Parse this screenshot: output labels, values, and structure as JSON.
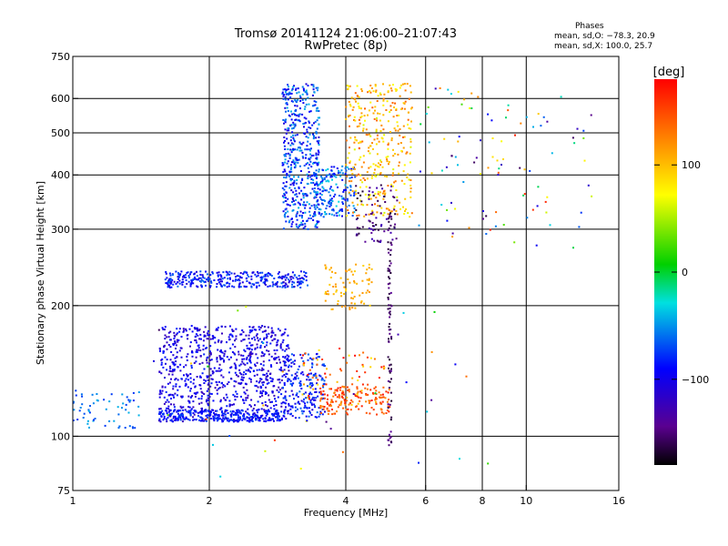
{
  "header": {
    "title_line1": "Tromsø 20141124 21:06:00–21:07:43",
    "title_line2": "RwPretec (8p)"
  },
  "stats": {
    "label": "Phases",
    "line_o": "mean, sd,O: −78.3, 20.9",
    "line_x": "mean, sd,X: 100.0, 25.7"
  },
  "chart_data": {
    "type": "scatter",
    "xlabel": "Frequency [MHz]",
    "ylabel": "Stationary phase Virtual Height [km]",
    "xscale": "log",
    "yscale": "log",
    "xlim": [
      1,
      16
    ],
    "ylim": [
      75,
      750
    ],
    "x_ticks": [
      1,
      2,
      4,
      6,
      8,
      10,
      16
    ],
    "y_ticks": [
      75,
      100,
      200,
      300,
      400,
      500,
      600,
      750
    ],
    "grid_x": [
      2,
      4,
      6,
      8,
      10
    ],
    "grid_y": [
      100,
      200,
      300,
      400,
      500,
      600
    ],
    "grid": true,
    "colorbar": {
      "label": "[deg]",
      "range": [
        -180,
        180
      ],
      "ticks": [
        -100,
        0,
        100
      ],
      "tick_labels": [
        "−100",
        "0",
        "100"
      ]
    },
    "clusters": [
      {
        "name": "O-trace low band",
        "freq": [
          1.55,
          3.0
        ],
        "height": [
          108,
          180
        ],
        "phase": [
          -125,
          -80
        ],
        "n": 900
      },
      {
        "name": "O-trace low band dense edge",
        "freq": [
          1.55,
          2.9
        ],
        "height": [
          108,
          115
        ],
        "phase": [
          -100,
          -70
        ],
        "n": 250
      },
      {
        "name": "O-trace low band extension",
        "freq": [
          2.9,
          3.6
        ],
        "height": [
          110,
          155
        ],
        "phase": [
          -110,
          -60
        ],
        "n": 200
      },
      {
        "name": "low-frequency echoes",
        "freq": [
          1.0,
          1.4
        ],
        "height": [
          104,
          128
        ],
        "phase": [
          -80,
          -40
        ],
        "n": 60
      },
      {
        "name": "E-region ledge",
        "freq": [
          1.6,
          3.3
        ],
        "height": [
          220,
          240
        ],
        "phase": [
          -115,
          -60
        ],
        "n": 330
      },
      {
        "name": "F-trace",
        "freq": [
          2.9,
          3.5
        ],
        "height": [
          300,
          650
        ],
        "phase": [
          -110,
          -40
        ],
        "n": 500
      },
      {
        "name": "F-trace cusp",
        "freq": [
          3.4,
          4.2
        ],
        "height": [
          320,
          420
        ],
        "phase": [
          -100,
          -30
        ],
        "n": 180
      },
      {
        "name": "X-trace",
        "freq": [
          4.0,
          5.6
        ],
        "height": [
          320,
          650
        ],
        "phase": [
          60,
          140
        ],
        "n": 350
      },
      {
        "name": "X-trace purple",
        "freq": [
          4.2,
          5.2
        ],
        "height": [
          280,
          380
        ],
        "phase": [
          -170,
          -120
        ],
        "n": 80
      },
      {
        "name": "X-trace low band",
        "freq": [
          3.5,
          5.0
        ],
        "height": [
          112,
          130
        ],
        "phase": [
          120,
          170
        ],
        "n": 150
      },
      {
        "name": "X-trace low band scatter",
        "freq": [
          3.2,
          4.9
        ],
        "height": [
          118,
          160
        ],
        "phase": [
          80,
          180
        ],
        "n": 80
      },
      {
        "name": "mid-height yellow",
        "freq": [
          3.6,
          4.6
        ],
        "height": [
          195,
          250
        ],
        "phase": [
          90,
          120
        ],
        "n": 80
      },
      {
        "name": "vertical streak",
        "freq": [
          4.95,
          5.05
        ],
        "height": [
          95,
          330
        ],
        "phase": [
          -170,
          -140
        ],
        "n": 80
      },
      {
        "name": "sparse high frequency",
        "freq": [
          5.8,
          14.0
        ],
        "height": [
          270,
          640
        ],
        "phase": [
          -170,
          170
        ],
        "n": 100
      },
      {
        "name": "sparse low",
        "freq": [
          1.5,
          10.0
        ],
        "height": [
          80,
          200
        ],
        "phase": [
          -170,
          170
        ],
        "n": 40
      }
    ]
  }
}
